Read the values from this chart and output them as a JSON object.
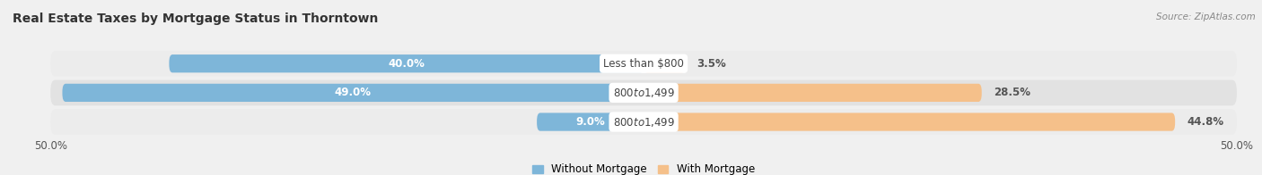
{
  "title": "Real Estate Taxes by Mortgage Status in Thorntown",
  "source": "Source: ZipAtlas.com",
  "bars": [
    {
      "label": "Less than $800",
      "without_mortgage": 40.0,
      "with_mortgage": 3.5
    },
    {
      "label": "$800 to $1,499",
      "without_mortgage": 49.0,
      "with_mortgage": 28.5
    },
    {
      "label": "$800 to $1,499",
      "without_mortgage": 9.0,
      "with_mortgage": 44.8
    }
  ],
  "x_min": -50.0,
  "x_max": 50.0,
  "color_without": "#7eb6d9",
  "color_with": "#f5c08a",
  "color_without_light": "#b8d9ee",
  "color_with_light": "#fad9b0",
  "bar_height": 0.62,
  "row_bg_color": "#e8e8e8",
  "row_bg_color2": "#f0f0f0",
  "legend_label_without": "Without Mortgage",
  "legend_label_with": "With Mortgage",
  "title_fontsize": 10,
  "label_fontsize": 8.5,
  "tick_fontsize": 8.5,
  "value_fontsize": 8.5
}
